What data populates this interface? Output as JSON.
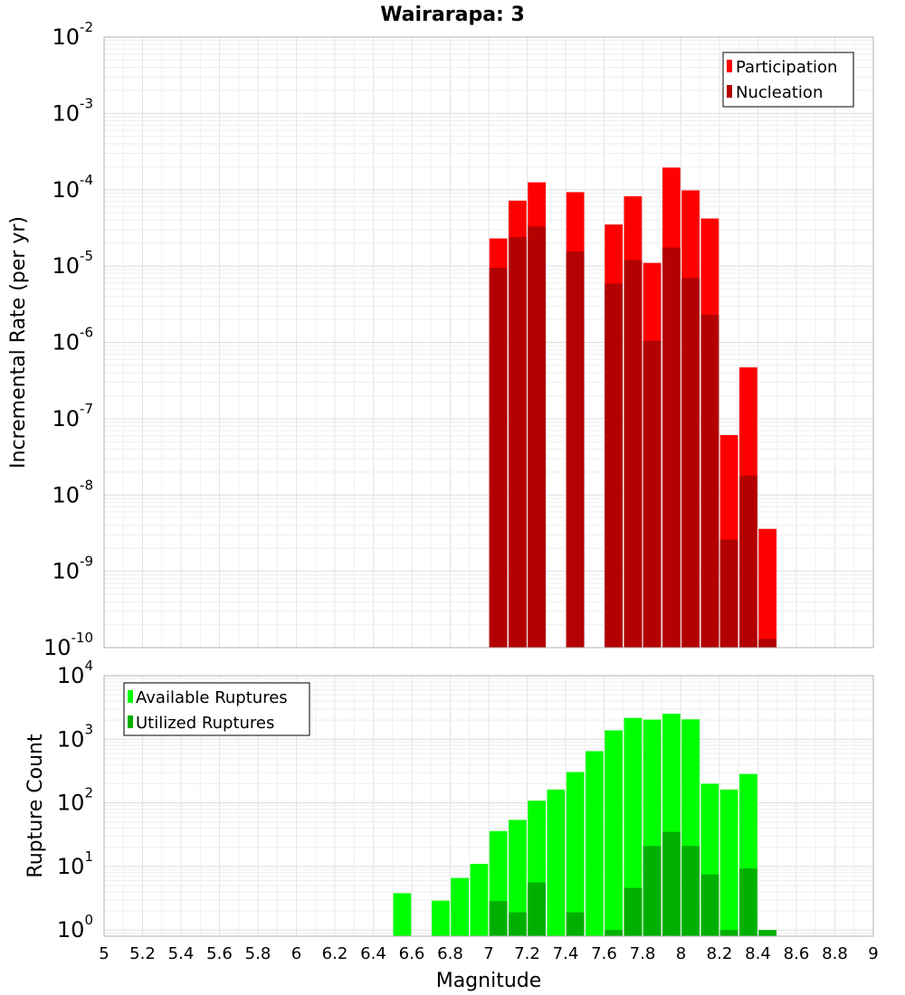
{
  "chart_data": [
    {
      "type": "bar",
      "title": "Wairarapa: 3",
      "ylabel": "Incremental Rate (per yr)",
      "xlabel": "",
      "y_scale": "log",
      "ylim": [
        1e-10,
        0.01
      ],
      "xlim": [
        5,
        9
      ],
      "y_ticks": [
        {
          "base": "10",
          "exp": "-10"
        },
        {
          "base": "10",
          "exp": "-9"
        },
        {
          "base": "10",
          "exp": "-8"
        },
        {
          "base": "10",
          "exp": "-7"
        },
        {
          "base": "10",
          "exp": "-6"
        },
        {
          "base": "10",
          "exp": "-5"
        },
        {
          "base": "10",
          "exp": "-4"
        },
        {
          "base": "10",
          "exp": "-3"
        },
        {
          "base": "10",
          "exp": "-2"
        }
      ],
      "grid": true,
      "legend_position": "top-right",
      "series": [
        {
          "name": "Participation",
          "color": "#ff0000",
          "points": [
            {
              "x": 7.05,
              "y": 2.3e-05
            },
            {
              "x": 7.15,
              "y": 7.2e-05
            },
            {
              "x": 7.25,
              "y": 0.000125
            },
            {
              "x": 7.45,
              "y": 9.3e-05
            },
            {
              "x": 7.65,
              "y": 3.5e-05
            },
            {
              "x": 7.75,
              "y": 8.2e-05
            },
            {
              "x": 7.85,
              "y": 1.1e-05
            },
            {
              "x": 7.95,
              "y": 0.000195
            },
            {
              "x": 8.05,
              "y": 9.8e-05
            },
            {
              "x": 8.15,
              "y": 4.2e-05
            },
            {
              "x": 8.25,
              "y": 6.1e-08
            },
            {
              "x": 8.35,
              "y": 4.7e-07
            },
            {
              "x": 8.45,
              "y": 3.6e-09
            }
          ]
        },
        {
          "name": "Nucleation",
          "color": "#b30000",
          "points": [
            {
              "x": 7.05,
              "y": 9.5e-06
            },
            {
              "x": 7.15,
              "y": 2.4e-05
            },
            {
              "x": 7.25,
              "y": 3.3e-05
            },
            {
              "x": 7.45,
              "y": 1.55e-05
            },
            {
              "x": 7.65,
              "y": 5.9e-06
            },
            {
              "x": 7.75,
              "y": 1.2e-05
            },
            {
              "x": 7.85,
              "y": 1.05e-06
            },
            {
              "x": 7.95,
              "y": 1.75e-05
            },
            {
              "x": 8.05,
              "y": 7e-06
            },
            {
              "x": 8.15,
              "y": 2.3e-06
            },
            {
              "x": 8.25,
              "y": 2.6e-09
            },
            {
              "x": 8.35,
              "y": 1.8e-08
            },
            {
              "x": 8.45,
              "y": 1.3e-10
            }
          ]
        }
      ]
    },
    {
      "type": "bar",
      "ylabel": "Rupture Count",
      "xlabel": "Magnitude",
      "y_scale": "log",
      "ylim": [
        0.8,
        10000
      ],
      "xlim": [
        5,
        9
      ],
      "y_ticks": [
        {
          "base": "10",
          "exp": "0"
        },
        {
          "base": "10",
          "exp": "1"
        },
        {
          "base": "10",
          "exp": "2"
        },
        {
          "base": "10",
          "exp": "3"
        },
        {
          "base": "10",
          "exp": "4"
        }
      ],
      "x_ticks": [
        "5",
        "5.2",
        "5.4",
        "5.6",
        "5.8",
        "6",
        "6.2",
        "6.4",
        "6.6",
        "6.8",
        "7",
        "7.2",
        "7.4",
        "7.6",
        "7.8",
        "8",
        "8.2",
        "8.4",
        "8.6",
        "8.8",
        "9"
      ],
      "grid": true,
      "legend_position": "top-left",
      "series": [
        {
          "name": "Available Ruptures",
          "color": "#00ff00",
          "points": [
            {
              "x": 6.55,
              "y": 3.8
            },
            {
              "x": 6.75,
              "y": 2.9
            },
            {
              "x": 6.85,
              "y": 6.6
            },
            {
              "x": 6.95,
              "y": 11
            },
            {
              "x": 7.05,
              "y": 36
            },
            {
              "x": 7.15,
              "y": 54
            },
            {
              "x": 7.25,
              "y": 108
            },
            {
              "x": 7.35,
              "y": 162
            },
            {
              "x": 7.45,
              "y": 305
            },
            {
              "x": 7.55,
              "y": 650
            },
            {
              "x": 7.65,
              "y": 1380
            },
            {
              "x": 7.75,
              "y": 2170
            },
            {
              "x": 7.85,
              "y": 2040
            },
            {
              "x": 7.95,
              "y": 2520
            },
            {
              "x": 8.05,
              "y": 2060
            },
            {
              "x": 8.15,
              "y": 200
            },
            {
              "x": 8.25,
              "y": 162
            },
            {
              "x": 8.35,
              "y": 285
            }
          ]
        },
        {
          "name": "Utilized Ruptures",
          "color": "#00b000",
          "points": [
            {
              "x": 7.05,
              "y": 2.85
            },
            {
              "x": 7.15,
              "y": 1.9
            },
            {
              "x": 7.25,
              "y": 5.6
            },
            {
              "x": 7.45,
              "y": 1.9
            },
            {
              "x": 7.65,
              "y": 1.0
            },
            {
              "x": 7.75,
              "y": 4.6
            },
            {
              "x": 7.85,
              "y": 21
            },
            {
              "x": 7.95,
              "y": 35
            },
            {
              "x": 8.05,
              "y": 21
            },
            {
              "x": 8.15,
              "y": 7.5
            },
            {
              "x": 8.25,
              "y": 1.0
            },
            {
              "x": 8.35,
              "y": 9.3
            },
            {
              "x": 8.45,
              "y": 1.0
            }
          ]
        }
      ]
    }
  ]
}
